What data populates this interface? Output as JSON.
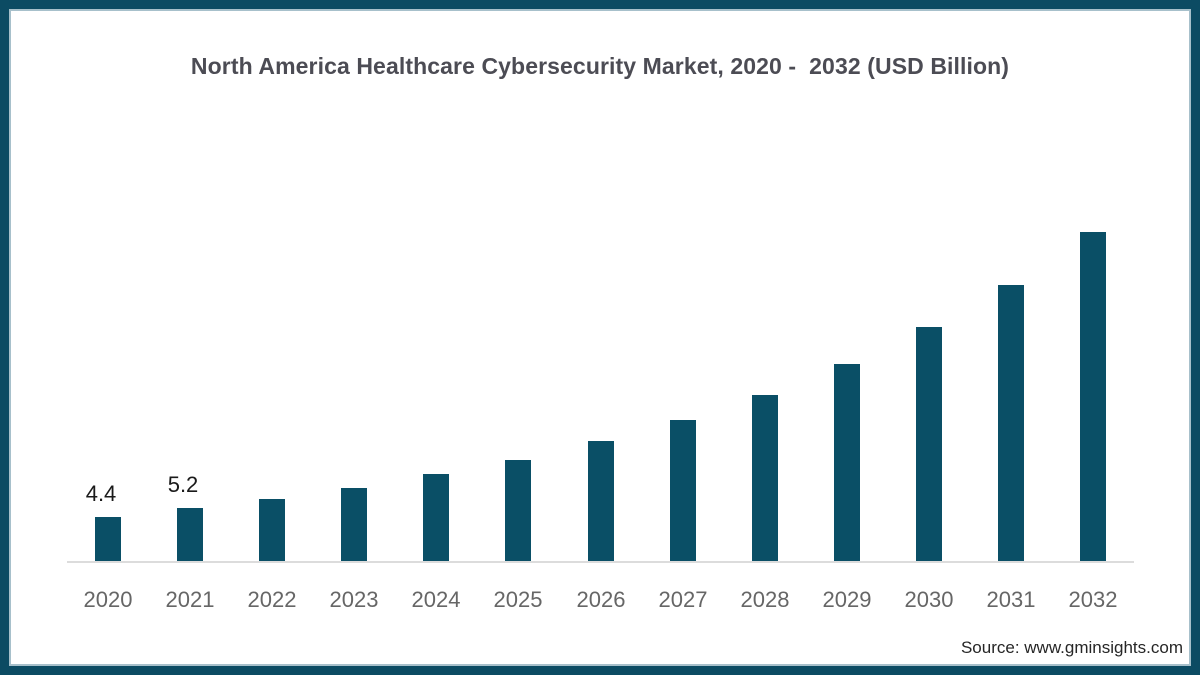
{
  "title": "North America Healthcare Cybersecurity Market, 2020 -  2032 (USD Billion)",
  "source": "Source: www.gminsights.com",
  "colors": {
    "bar": "#0A4F66",
    "frame_border": "#0C4B63",
    "frame_border_inner_highlight": "#3E768E",
    "title_text": "#4C4C54",
    "tick_text": "#666666",
    "axis_line": "#DCDCDC",
    "value_label_text": "#1A1A1A",
    "source_text": "#262626"
  },
  "chart_data": {
    "type": "bar",
    "title": "North America Healthcare Cybersecurity Market, 2020 -  2032 (USD Billion)",
    "unit": "USD Billion",
    "categories": [
      "2020",
      "2021",
      "2022",
      "2023",
      "2024",
      "2025",
      "2026",
      "2027",
      "2028",
      "2029",
      "2030",
      "2031",
      "2032"
    ],
    "values": [
      4.4,
      5.2,
      6.1,
      7.2,
      8.5,
      9.9,
      11.7,
      13.8,
      16.2,
      19.2,
      22.8,
      26.9,
      32.0
    ],
    "point_labels": [
      "4.4",
      "5.2",
      "",
      "",
      "",
      "",
      "",
      "",
      "",
      "",
      "",
      "",
      ""
    ],
    "xlabel": "",
    "ylabel": "",
    "ylim": [
      0,
      34
    ],
    "grid": false,
    "legend": false,
    "y_axis_shown": false,
    "source": "Source: www.gminsights.com"
  }
}
